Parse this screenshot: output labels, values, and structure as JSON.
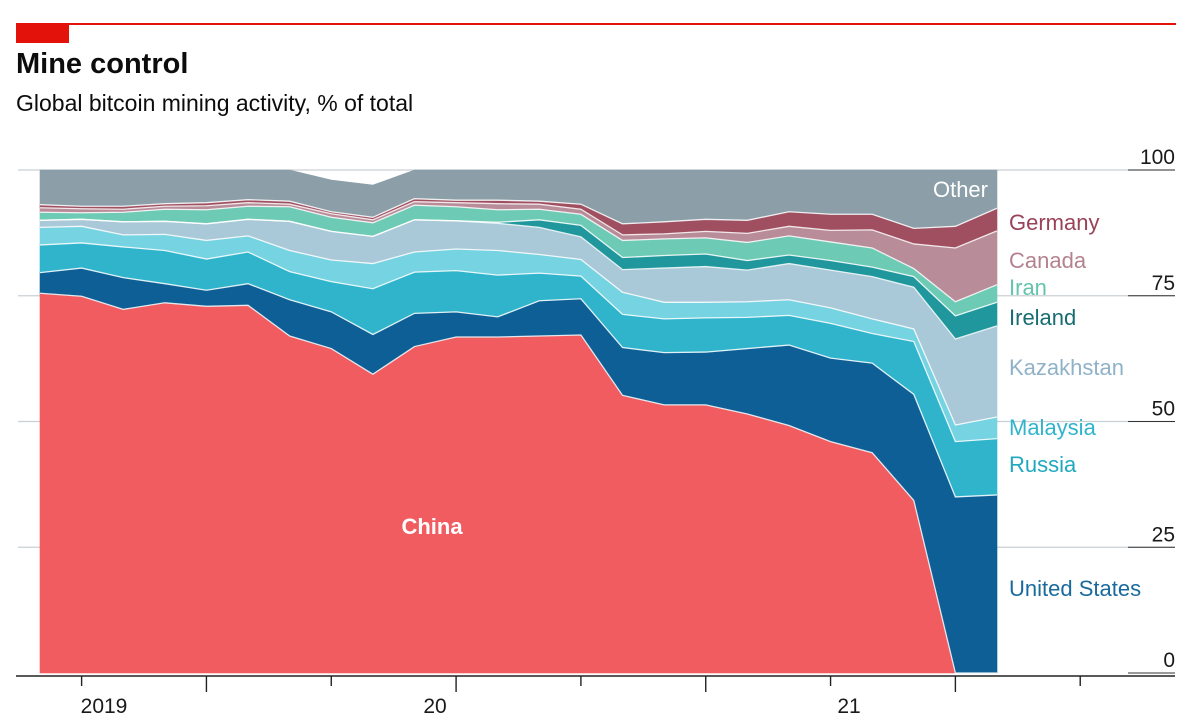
{
  "title": "Mine control",
  "subtitle": "Global bitcoin mining activity, % of total",
  "colors": {
    "brand_red": "#e3120b",
    "China": "#f05c60",
    "United States": "#0d5f96",
    "Russia": "#2fb4cc",
    "Malaysia": "#75d3e2",
    "Kazakhstan": "#a9c9d9",
    "Ireland": "#1f979d",
    "Iran": "#6dcbb5",
    "Canada": "#b88c98",
    "Germany": "#a04f61",
    "Other": "#8c9ea8"
  },
  "chart_data": {
    "type": "area",
    "stacked": true,
    "title": "Mine control",
    "subtitle": "Global bitcoin mining activity, % of total",
    "x": [
      "2019-09",
      "2019-10",
      "2019-11",
      "2019-12",
      "2020-01",
      "2020-02",
      "2020-03",
      "2020-04",
      "2020-05",
      "2020-06",
      "2020-07",
      "2020-08",
      "2020-09",
      "2020-10",
      "2020-11",
      "2020-12",
      "2021-01",
      "2021-02",
      "2021-03",
      "2021-04",
      "2021-05",
      "2021-06",
      "2021-07",
      "2021-08"
    ],
    "x_tick_labels": [
      "2019",
      "20",
      "21"
    ],
    "y_tick_labels": [
      "100",
      "75",
      "50",
      "25",
      "0"
    ],
    "ylim": [
      0,
      100
    ],
    "y_axis_side": "right",
    "grid": "horizontal",
    "series": [
      {
        "name": "China",
        "values": [
          75.5,
          74.9,
          72.3,
          73.6,
          72.9,
          73.1,
          67.0,
          64.5,
          59.4,
          64.9,
          66.8,
          66.8,
          67.0,
          67.2,
          55.2,
          53.3,
          53.3,
          51.5,
          49.2,
          46.0,
          43.8,
          34.3,
          0.0,
          0.0
        ]
      },
      {
        "name": "United States",
        "values": [
          4.1,
          5.6,
          6.3,
          3.8,
          3.2,
          4.3,
          7.2,
          7.3,
          7.9,
          6.6,
          5.0,
          4.0,
          7.0,
          7.2,
          9.5,
          10.4,
          10.5,
          13.0,
          16.0,
          16.6,
          17.8,
          21.1,
          35.0,
          35.4
        ]
      },
      {
        "name": "Russia",
        "values": [
          5.5,
          5.0,
          6.1,
          6.6,
          6.2,
          6.3,
          5.6,
          6.0,
          9.1,
          8.2,
          8.2,
          8.3,
          5.5,
          4.5,
          6.6,
          6.7,
          6.8,
          6.2,
          5.9,
          6.9,
          5.9,
          10.5,
          11.0,
          11.2
        ]
      },
      {
        "name": "Malaysia",
        "values": [
          3.5,
          3.3,
          2.4,
          3.2,
          3.7,
          3.2,
          4.2,
          4.3,
          5.0,
          4.0,
          4.3,
          4.9,
          3.7,
          3.3,
          4.4,
          3.3,
          3.1,
          3.1,
          3.1,
          3.1,
          2.9,
          2.5,
          3.3,
          4.3
        ]
      },
      {
        "name": "Kazakhstan",
        "values": [
          1.4,
          1.4,
          2.6,
          2.6,
          3.3,
          3.3,
          5.8,
          5.7,
          5.4,
          6.4,
          5.6,
          5.4,
          5.4,
          4.5,
          4.5,
          6.8,
          7.1,
          6.3,
          7.2,
          7.5,
          8.4,
          8.3,
          17.1,
          18.1
        ]
      },
      {
        "name": "Ireland",
        "values": [
          0.0,
          0.0,
          0.0,
          0.0,
          0.0,
          0.0,
          0.0,
          0.0,
          0.0,
          0.0,
          0.0,
          0.2,
          1.5,
          2.3,
          2.4,
          2.5,
          2.5,
          1.9,
          1.7,
          1.9,
          1.9,
          2.1,
          4.6,
          4.7
        ]
      },
      {
        "name": "Iran",
        "values": [
          1.6,
          1.3,
          1.9,
          2.4,
          2.8,
          2.6,
          2.9,
          2.8,
          2.7,
          2.9,
          2.8,
          2.5,
          2.1,
          2.2,
          3.4,
          3.3,
          3.2,
          3.6,
          3.8,
          3.7,
          3.8,
          1.6,
          2.8,
          3.5
        ]
      },
      {
        "name": "Canada",
        "values": [
          0.9,
          0.8,
          0.6,
          0.6,
          0.8,
          0.7,
          0.5,
          0.7,
          0.6,
          0.7,
          0.8,
          1.2,
          1.0,
          1.0,
          1.1,
          1.0,
          1.3,
          1.8,
          1.9,
          2.3,
          3.6,
          4.9,
          10.7,
          10.7
        ]
      },
      {
        "name": "Germany",
        "values": [
          0.6,
          0.5,
          0.6,
          0.5,
          0.6,
          0.6,
          0.6,
          0.4,
          0.5,
          0.6,
          0.5,
          0.7,
          0.6,
          1.0,
          2.2,
          2.4,
          2.4,
          2.6,
          2.9,
          3.2,
          3.1,
          3.1,
          4.3,
          4.5
        ]
      },
      {
        "name": "Other",
        "values": [
          6.9,
          7.2,
          7.2,
          6.7,
          6.5,
          5.9,
          6.2,
          6.3,
          6.4,
          5.7,
          6.0,
          6.0,
          6.2,
          6.8,
          10.7,
          10.3,
          9.8,
          10.0,
          8.3,
          8.8,
          8.8,
          11.6,
          11.2,
          7.6
        ]
      }
    ]
  }
}
